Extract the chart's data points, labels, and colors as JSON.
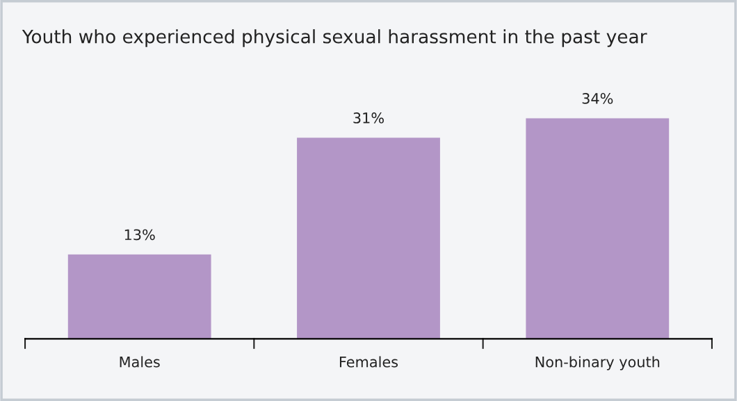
{
  "chart_data": {
    "type": "bar",
    "title": "Youth who experienced physical sexual harassment in the past year",
    "categories": [
      "Males",
      "Females",
      "Non-binary youth"
    ],
    "values": [
      13,
      31,
      34
    ],
    "value_labels": [
      "13%",
      "31%",
      "34%"
    ],
    "color": "#b396c7",
    "grid": false,
    "legend": false
  }
}
